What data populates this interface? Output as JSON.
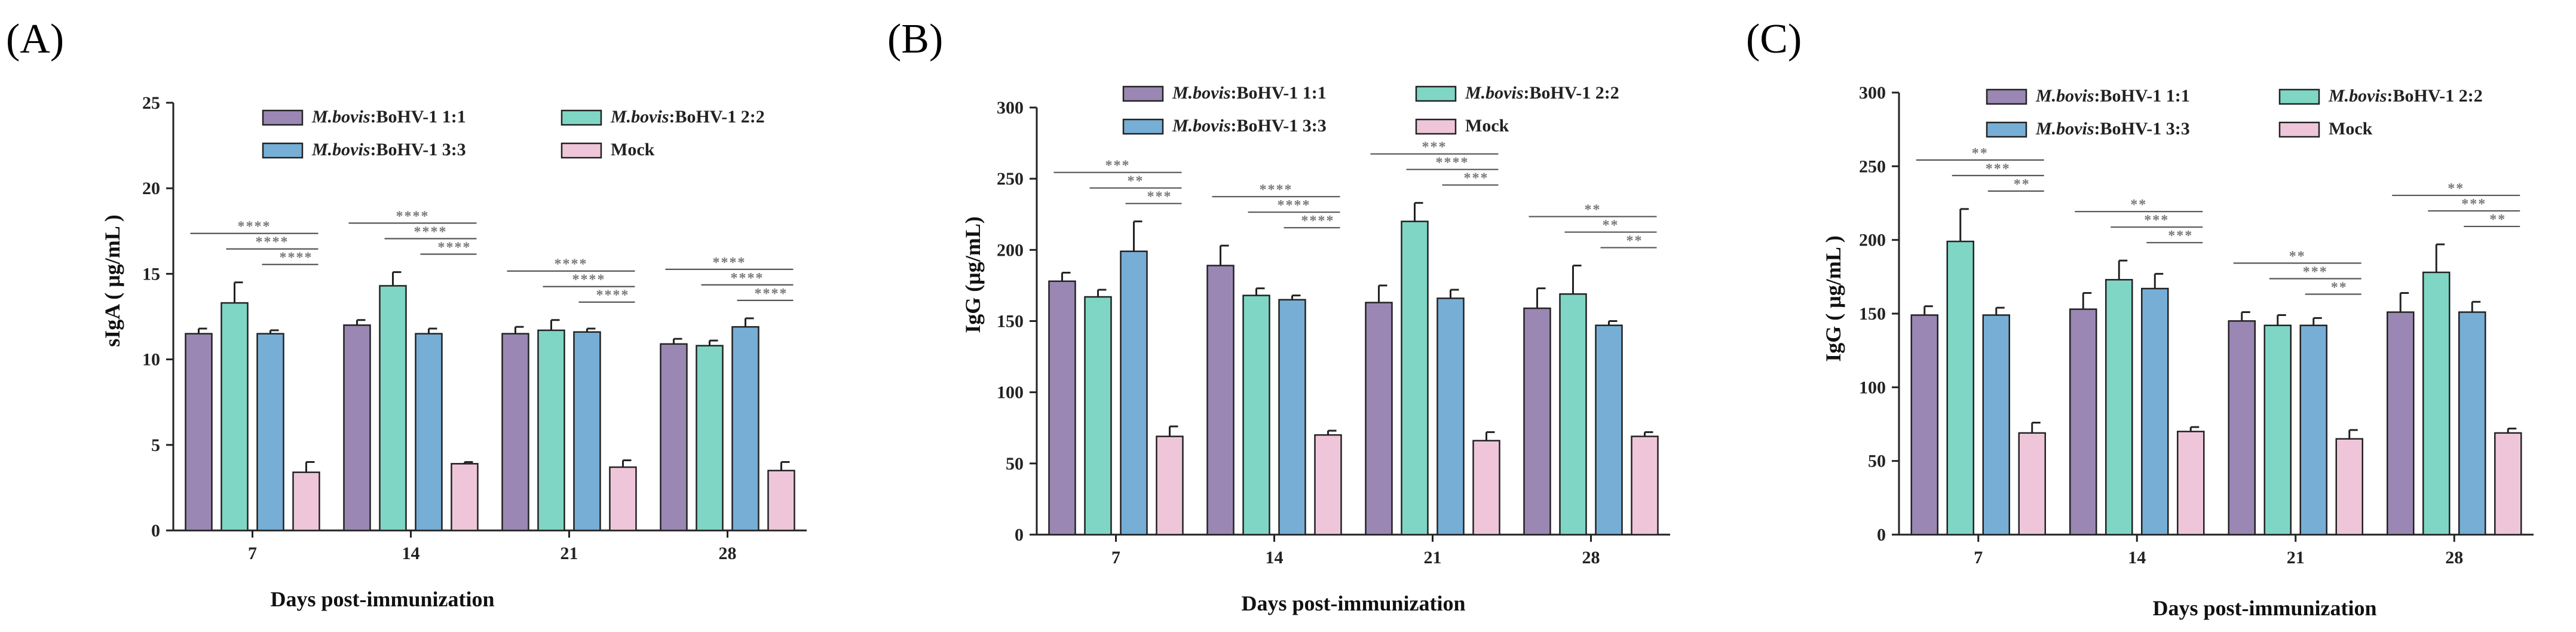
{
  "colors": {
    "mbovis_1": "#9a87b4",
    "mbovis_2": "#7fd6c4",
    "mbovis_3": "#76aed6",
    "mock": "#efc6d9"
  },
  "chart_data": [
    {
      "type": "bar",
      "panel_label": "(A)",
      "categories": [
        "7",
        "14",
        "21",
        "28"
      ],
      "xlabel": "Days post-immunization",
      "ylabel": "sIgA ( μg/mL )",
      "ylim": [
        0,
        25
      ],
      "yticks": [
        "0",
        "5",
        "10",
        "15",
        "20",
        "25"
      ],
      "legend_position": "top-center",
      "series": [
        {
          "name_italic": "M.bovis",
          "name_rest": ":BoHV-1 1:1",
          "color_key": "mbovis_1",
          "values": [
            11.5,
            12.0,
            11.5,
            10.9
          ],
          "errors": [
            0.3,
            0.3,
            0.4,
            0.3
          ]
        },
        {
          "name_italic": "M.bovis",
          "name_rest": ":BoHV-1 2:2",
          "color_key": "mbovis_2",
          "values": [
            13.3,
            14.3,
            11.7,
            10.8
          ],
          "errors": [
            1.2,
            0.8,
            0.6,
            0.3
          ]
        },
        {
          "name_italic": "M.bovis",
          "name_rest": ":BoHV-1 3:3",
          "color_key": "mbovis_3",
          "values": [
            11.5,
            11.5,
            11.6,
            11.9
          ],
          "errors": [
            0.2,
            0.3,
            0.2,
            0.5
          ]
        },
        {
          "name_italic": "",
          "name_rest": "Mock",
          "color_key": "mock",
          "values": [
            3.4,
            3.9,
            3.7,
            3.5
          ],
          "errors": [
            0.6,
            0.1,
            0.4,
            0.5
          ]
        }
      ],
      "significance": [
        [
          {
            "from": 0,
            "label": "****"
          },
          {
            "from": 1,
            "label": "****"
          },
          {
            "from": 2,
            "label": "****"
          }
        ],
        [
          {
            "from": 0,
            "label": "****"
          },
          {
            "from": 1,
            "label": "****"
          },
          {
            "from": 2,
            "label": "****"
          }
        ],
        [
          {
            "from": 0,
            "label": "****"
          },
          {
            "from": 1,
            "label": "****"
          },
          {
            "from": 2,
            "label": "****"
          }
        ],
        [
          {
            "from": 0,
            "label": "****"
          },
          {
            "from": 1,
            "label": "****"
          },
          {
            "from": 2,
            "label": "****"
          }
        ]
      ]
    },
    {
      "type": "bar",
      "panel_label": "(B)",
      "categories": [
        "7",
        "14",
        "21",
        "28"
      ],
      "xlabel": "Days post-immunization",
      "ylabel": "IgG (μg/mL)",
      "ylim": [
        0,
        300
      ],
      "yticks": [
        "0",
        "50",
        "100",
        "150",
        "200",
        "250",
        "300"
      ],
      "legend_position": "top-center",
      "series": [
        {
          "name_italic": "M.bovis",
          "name_rest": ":BoHV-1 1:1",
          "color_key": "mbovis_1",
          "values": [
            178,
            189,
            163,
            159
          ],
          "errors": [
            6,
            14,
            12,
            14
          ]
        },
        {
          "name_italic": "M.bovis",
          "name_rest": ":BoHV-1 2:2",
          "color_key": "mbovis_2",
          "values": [
            167,
            168,
            220,
            169
          ],
          "errors": [
            5,
            5,
            13,
            20
          ]
        },
        {
          "name_italic": "M.bovis",
          "name_rest": ":BoHV-1 3:3",
          "color_key": "mbovis_3",
          "values": [
            199,
            165,
            166,
            147
          ],
          "errors": [
            21,
            3,
            6,
            3
          ]
        },
        {
          "name_italic": "",
          "name_rest": "Mock",
          "color_key": "mock",
          "values": [
            69,
            70,
            66,
            69
          ],
          "errors": [
            7,
            3,
            6,
            3
          ]
        }
      ],
      "significance": [
        [
          {
            "from": 0,
            "label": "***"
          },
          {
            "from": 1,
            "label": "**"
          },
          {
            "from": 2,
            "label": "***"
          }
        ],
        [
          {
            "from": 0,
            "label": "****"
          },
          {
            "from": 1,
            "label": "****"
          },
          {
            "from": 2,
            "label": "****"
          }
        ],
        [
          {
            "from": 0,
            "label": "***"
          },
          {
            "from": 1,
            "label": "****"
          },
          {
            "from": 2,
            "label": "***"
          }
        ],
        [
          {
            "from": 0,
            "label": "**"
          },
          {
            "from": 1,
            "label": "**"
          },
          {
            "from": 2,
            "label": "**"
          }
        ]
      ]
    },
    {
      "type": "bar",
      "panel_label": "(C)",
      "categories": [
        "7",
        "14",
        "21",
        "28"
      ],
      "xlabel": "Days post-immunization",
      "ylabel": "IgG ( μg/mL )",
      "ylim": [
        0,
        300
      ],
      "yticks": [
        "0",
        "50",
        "100",
        "150",
        "200",
        "250",
        "300"
      ],
      "legend_position": "top-center",
      "series": [
        {
          "name_italic": "M.bovis",
          "name_rest": ":BoHV-1 1:1",
          "color_key": "mbovis_1",
          "values": [
            149,
            153,
            145,
            151
          ],
          "errors": [
            6,
            11,
            6,
            13
          ]
        },
        {
          "name_italic": "M.bovis",
          "name_rest": ":BoHV-1 2:2",
          "color_key": "mbovis_2",
          "values": [
            199,
            173,
            142,
            178
          ],
          "errors": [
            22,
            13,
            7,
            19
          ]
        },
        {
          "name_italic": "M.bovis",
          "name_rest": ":BoHV-1 3:3",
          "color_key": "mbovis_3",
          "values": [
            149,
            167,
            142,
            151
          ],
          "errors": [
            5,
            10,
            5,
            7
          ]
        },
        {
          "name_italic": "",
          "name_rest": "Mock",
          "color_key": "mock",
          "values": [
            69,
            70,
            65,
            69
          ],
          "errors": [
            7,
            3,
            6,
            3
          ]
        }
      ],
      "significance": [
        [
          {
            "from": 0,
            "label": "**"
          },
          {
            "from": 1,
            "label": "***"
          },
          {
            "from": 2,
            "label": "**"
          }
        ],
        [
          {
            "from": 0,
            "label": "**"
          },
          {
            "from": 1,
            "label": "***"
          },
          {
            "from": 2,
            "label": "***"
          }
        ],
        [
          {
            "from": 0,
            "label": "**"
          },
          {
            "from": 1,
            "label": "***"
          },
          {
            "from": 2,
            "label": "**"
          }
        ],
        [
          {
            "from": 0,
            "label": "**"
          },
          {
            "from": 1,
            "label": "***"
          },
          {
            "from": 2,
            "label": "**"
          }
        ]
      ]
    }
  ]
}
